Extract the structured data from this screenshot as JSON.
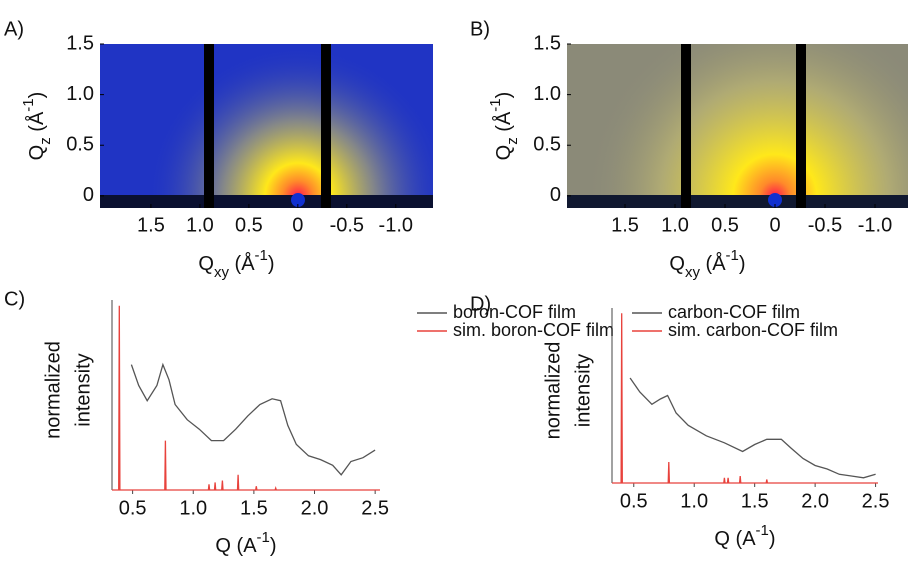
{
  "chart_data": [
    {
      "type": "image",
      "panel_label": "A)",
      "x_label": [
        "Q",
        "xy",
        " (Å",
        "-1",
        ")"
      ],
      "y_label": [
        "Q",
        "z",
        " (Å",
        "-1",
        ")"
      ],
      "xlim": [
        2.02,
        -1.38
      ],
      "ylim": [
        -0.12,
        1.5
      ],
      "xticks": [
        1.5,
        {
          "value": 1,
          "label": "1.0"
        },
        0.5,
        0,
        -0.5,
        {
          "value": -1,
          "label": "-1.0"
        }
      ],
      "yticks": [
        0,
        0.5,
        {
          "value": 1,
          "label": "1.0"
        },
        1.5
      ]
    },
    {
      "type": "image",
      "panel_label": "B)",
      "x_label": [
        "Q",
        "xy",
        " (Å",
        "-1",
        ")"
      ],
      "y_label": [
        "Q",
        "z",
        " (Å",
        "-1",
        ")"
      ],
      "xlim": [
        2.08,
        -1.33
      ],
      "ylim": [
        -0.12,
        1.5
      ],
      "xticks": [
        1.5,
        {
          "value": 1,
          "label": "1.0"
        },
        0.5,
        0,
        -0.5,
        {
          "value": -1,
          "label": "-1.0"
        }
      ],
      "yticks": [
        0,
        0.5,
        {
          "value": 1,
          "label": "1.0"
        },
        1.5
      ]
    },
    {
      "type": "line",
      "panel_label": "C)",
      "x_label": [
        "Q (A",
        "-1",
        ")"
      ],
      "y_label": [
        "normalized",
        "intensity"
      ],
      "xlim": [
        0.33,
        2.54
      ],
      "ylim": [
        0,
        1
      ],
      "xticks": [
        0.5,
        {
          "value": 1,
          "label": "1.0"
        },
        1.5,
        {
          "value": 2,
          "label": "2.0"
        },
        2.5
      ],
      "series": [
        {
          "name": "boron-COF film",
          "color": "#555555",
          "x": [
            0.49,
            0.55,
            0.62,
            0.7,
            0.75,
            0.8,
            0.85,
            0.95,
            1.05,
            1.15,
            1.25,
            1.35,
            1.45,
            1.55,
            1.65,
            1.72,
            1.78,
            1.85,
            1.95,
            2.05,
            2.15,
            2.22,
            2.3,
            2.4,
            2.5
          ],
          "values": [
            0.66,
            0.55,
            0.47,
            0.55,
            0.66,
            0.58,
            0.45,
            0.37,
            0.32,
            0.26,
            0.26,
            0.32,
            0.39,
            0.45,
            0.48,
            0.47,
            0.34,
            0.24,
            0.18,
            0.16,
            0.13,
            0.08,
            0.15,
            0.17,
            0.21
          ]
        },
        {
          "name": "sim. boron-COF film",
          "color": "#e8423c",
          "x": [
            0.33,
            0.385,
            0.39,
            0.395,
            0.765,
            0.77,
            0.775,
            1.125,
            1.13,
            1.135,
            1.175,
            1.18,
            1.185,
            1.235,
            1.24,
            1.245,
            1.365,
            1.37,
            1.375,
            1.515,
            1.52,
            1.525,
            1.675,
            1.68,
            1.685,
            2.54
          ],
          "values": [
            0,
            0,
            0.97,
            0,
            0,
            0.26,
            0,
            0,
            0.03,
            0,
            0,
            0.04,
            0,
            0,
            0.05,
            0,
            0,
            0.08,
            0,
            0,
            0.02,
            0,
            0,
            0.01,
            0,
            0
          ]
        }
      ]
    },
    {
      "type": "line",
      "panel_label": "D)",
      "x_label": [
        "Q (A",
        "-1",
        ")"
      ],
      "y_label": [
        "normalized",
        "intensity"
      ],
      "xlim": [
        0.32,
        2.52
      ],
      "ylim": [
        0,
        1
      ],
      "xticks": [
        0.5,
        {
          "value": 1,
          "label": "1.0"
        },
        1.5,
        {
          "value": 2,
          "label": "2.0"
        },
        2.5
      ],
      "series": [
        {
          "name": "carbon-COF film",
          "color": "#555555",
          "x": [
            0.47,
            0.55,
            0.65,
            0.72,
            0.78,
            0.85,
            0.95,
            1.1,
            1.25,
            1.4,
            1.5,
            1.6,
            1.72,
            1.8,
            1.9,
            2.0,
            2.1,
            2.2,
            2.3,
            2.4,
            2.5
          ],
          "values": [
            0.6,
            0.52,
            0.45,
            0.48,
            0.5,
            0.4,
            0.33,
            0.27,
            0.23,
            0.18,
            0.22,
            0.25,
            0.25,
            0.2,
            0.14,
            0.1,
            0.08,
            0.05,
            0.04,
            0.03,
            0.05
          ]
        },
        {
          "name": "sim. carbon-COF film",
          "color": "#e8423c",
          "x": [
            0.32,
            0.395,
            0.4,
            0.405,
            0.785,
            0.79,
            0.795,
            1.245,
            1.25,
            1.255,
            1.275,
            1.28,
            1.285,
            1.375,
            1.38,
            1.385,
            1.595,
            1.6,
            1.605,
            2.52
          ],
          "values": [
            0,
            0,
            0.97,
            0,
            0,
            0.12,
            0,
            0,
            0.03,
            0,
            0,
            0.03,
            0,
            0,
            0.04,
            0,
            0,
            0.02,
            0,
            0
          ]
        }
      ]
    }
  ]
}
